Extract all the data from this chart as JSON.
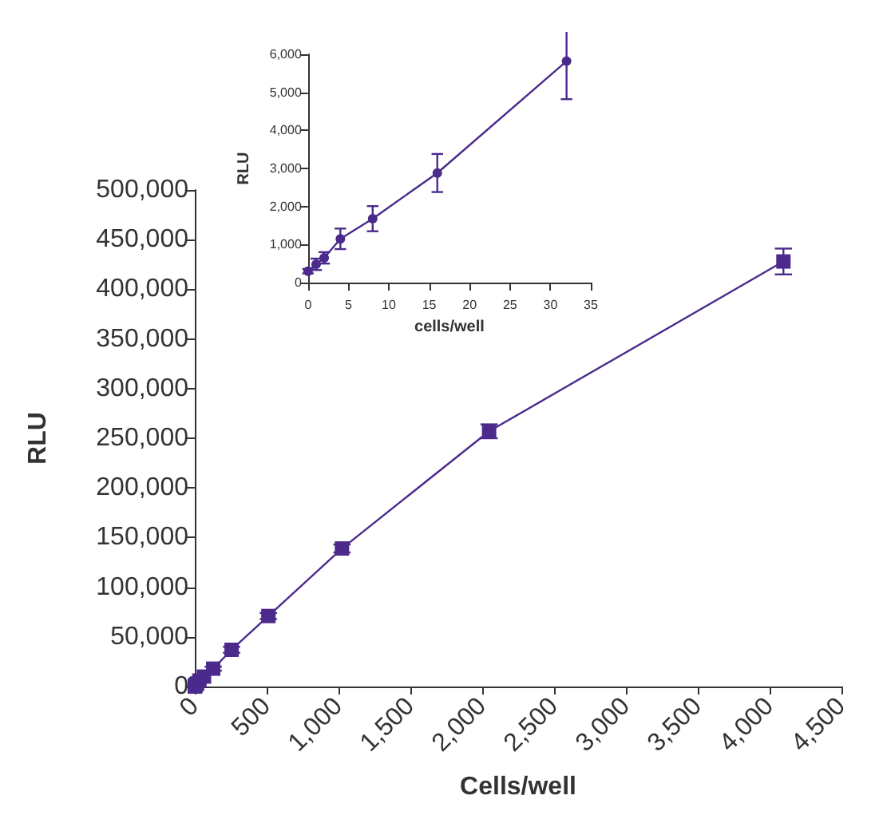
{
  "chart_data": [
    {
      "type": "line",
      "xlabel": "Cells/well",
      "ylabel": "RLU",
      "marker": "square",
      "xlim": [
        0,
        4500
      ],
      "ylim": [
        0,
        500000
      ],
      "xticks": [
        0,
        500,
        {
          "value": 1000,
          "label": "1,000"
        },
        {
          "value": 1500,
          "label": "1,500"
        },
        {
          "value": 2000,
          "label": "2,000"
        },
        {
          "value": 2500,
          "label": "2,500"
        },
        {
          "value": 3000,
          "label": "3,000"
        },
        {
          "value": 3500,
          "label": "3,500"
        },
        {
          "value": 4000,
          "label": "4,000"
        },
        {
          "value": 4500,
          "label": "4,500"
        }
      ],
      "yticks": [
        0,
        {
          "value": 50000,
          "label": "50,000"
        },
        {
          "value": 100000,
          "label": "100,000"
        },
        {
          "value": 150000,
          "label": "150,000"
        },
        {
          "value": 200000,
          "label": "200,000"
        },
        {
          "value": 250000,
          "label": "250,000"
        },
        {
          "value": 300000,
          "label": "300,000"
        },
        {
          "value": 350000,
          "label": "350,000"
        },
        {
          "value": 400000,
          "label": "400,000"
        },
        {
          "value": 450000,
          "label": "450,000"
        },
        {
          "value": 500000,
          "label": "500,000"
        }
      ],
      "x": [
        0,
        1,
        2,
        4,
        8,
        16,
        32,
        64,
        128,
        256,
        512,
        1024,
        2048,
        4096
      ],
      "series": [
        {
          "color": "#4b2a8c",
          "values": [
            0,
            0,
            1000,
            1000,
            2000,
            3000,
            6000,
            10000,
            18000,
            37000,
            71000,
            139000,
            257000,
            428000
          ],
          "errors": [
            null,
            null,
            null,
            null,
            null,
            null,
            null,
            null,
            2000,
            3000,
            3000,
            4000,
            7000,
            13000
          ]
        }
      ]
    },
    {
      "type": "line",
      "xlabel": "cells/well",
      "ylabel": "RLU",
      "marker": "circle",
      "xlim": [
        0,
        35
      ],
      "ylim": [
        0,
        6000
      ],
      "xticks": [
        0,
        5,
        10,
        15,
        20,
        25,
        30,
        35
      ],
      "yticks": [
        0,
        {
          "value": 1000,
          "label": "1,000"
        },
        {
          "value": 2000,
          "label": "2,000"
        },
        {
          "value": 3000,
          "label": "3,000"
        },
        {
          "value": 4000,
          "label": "4,000"
        },
        {
          "value": 5000,
          "label": "5,000"
        },
        {
          "value": 6000,
          "label": "6,000"
        }
      ],
      "x": [
        0,
        1,
        2,
        4,
        8,
        16,
        32
      ],
      "series": [
        {
          "color": "#4b2a8c",
          "values": [
            300,
            480,
            650,
            1150,
            1680,
            2880,
            5820
          ],
          "errors": [
            60,
            150,
            150,
            270,
            330,
            500,
            1000
          ]
        }
      ]
    }
  ]
}
